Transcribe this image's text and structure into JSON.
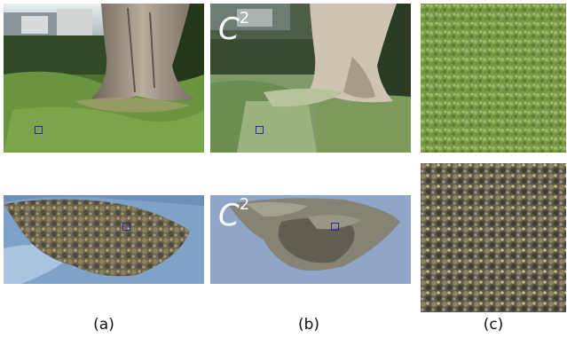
{
  "figure": {
    "panels": [
      {
        "id": "a-top",
        "desc_key": "tree-photo"
      },
      {
        "id": "b-top",
        "label_main": "C",
        "label_sup": "2"
      },
      {
        "id": "c-top"
      },
      {
        "id": "a-bottom"
      },
      {
        "id": "b-bottom",
        "label_main": "C",
        "label_sup": "2"
      },
      {
        "id": "c-bottom"
      }
    ],
    "captions": [
      "(a)",
      "(b)",
      "(c)"
    ]
  }
}
